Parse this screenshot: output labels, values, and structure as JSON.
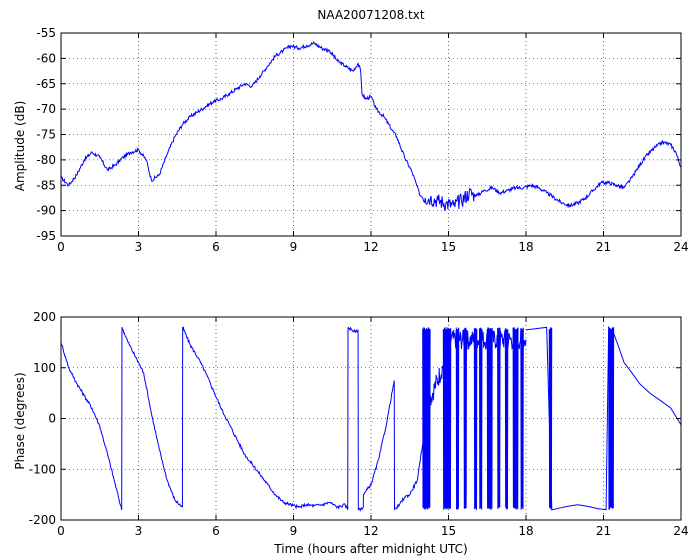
{
  "chart_data": [
    {
      "type": "line",
      "title": "NAA20071208.txt",
      "xlabel": "",
      "ylabel": "Amplitude (dB)",
      "xlim": [
        0,
        24
      ],
      "ylim": [
        -95,
        -55
      ],
      "xticks": [
        0,
        3,
        6,
        9,
        12,
        15,
        18,
        21,
        24
      ],
      "yticks": [
        -95,
        -90,
        -85,
        -80,
        -75,
        -70,
        -65,
        -60,
        -55
      ],
      "grid": true,
      "line_color": "#0000ff",
      "series": [
        {
          "x": [
            0,
            0.3,
            0.6,
            0.9,
            1.2,
            1.5,
            1.8,
            2.1,
            2.4,
            2.7,
            3.0,
            3.3,
            3.5,
            3.8,
            4.1,
            4.4,
            4.7,
            5.0,
            5.3,
            5.6,
            5.9,
            6.2,
            6.5,
            6.8,
            7.1,
            7.4,
            7.7,
            8.0,
            8.3,
            8.6,
            8.9,
            9.2,
            9.5,
            9.8,
            10.1,
            10.4,
            10.7,
            11.0,
            11.3,
            11.5,
            11.6,
            11.65,
            11.8,
            12.0,
            12.2,
            12.5,
            12.8,
            13.0,
            13.3,
            13.6,
            13.9,
            14.1,
            14.3,
            14.6,
            14.9,
            15.2,
            15.5,
            15.8,
            16.1,
            16.4,
            16.7,
            17.0,
            17.3,
            17.6,
            17.9,
            18.2,
            18.5,
            18.8,
            19.1,
            19.4,
            19.7,
            20.0,
            20.3,
            20.6,
            20.9,
            21.2,
            21.5,
            21.8,
            22.1,
            22.4,
            22.7,
            23.0,
            23.3,
            23.6,
            23.8,
            24.0
          ],
          "y": [
            -83.5,
            -85,
            -83,
            -80,
            -78.5,
            -79.5,
            -82,
            -81,
            -79.5,
            -78.5,
            -78,
            -80,
            -84,
            -83,
            -79,
            -75.5,
            -73,
            -71.5,
            -70.5,
            -69.5,
            -68.5,
            -68,
            -67,
            -66,
            -65,
            -65.5,
            -63.5,
            -61.5,
            -59.5,
            -58.5,
            -57.5,
            -58,
            -57.5,
            -57,
            -58,
            -58.5,
            -60.5,
            -61.5,
            -62.5,
            -61,
            -62.5,
            -67,
            -68,
            -67.5,
            -70,
            -71.5,
            -74,
            -75.5,
            -79.5,
            -82.5,
            -87,
            -87.5,
            -87.5,
            -88,
            -88.5,
            -89,
            -88,
            -86.5,
            -87,
            -86,
            -85.5,
            -86.5,
            -86,
            -85.5,
            -85.5,
            -85,
            -85.5,
            -86.5,
            -87.5,
            -88.5,
            -89,
            -88.5,
            -87.5,
            -86,
            -84.5,
            -84.5,
            -85,
            -85.5,
            -83.5,
            -81,
            -79,
            -77.5,
            -76.5,
            -77,
            -78.5,
            -81.5
          ]
        }
      ]
    },
    {
      "type": "line",
      "title": "",
      "xlabel": "Time (hours after midnight UTC)",
      "ylabel": "Phase (degrees)",
      "xlim": [
        0,
        24
      ],
      "ylim": [
        -200,
        200
      ],
      "xticks": [
        0,
        3,
        6,
        9,
        12,
        15,
        18,
        21,
        24
      ],
      "yticks": [
        -200,
        -100,
        0,
        100,
        200
      ],
      "grid": true,
      "line_color": "#0000ff",
      "series": [
        {
          "x": [
            0,
            0.3,
            0.6,
            0.9,
            1.2,
            1.5,
            1.8,
            2.1,
            2.35,
            2.36,
            2.6,
            2.9,
            3.2,
            3.5,
            3.8,
            4.1,
            4.4,
            4.7,
            4.71,
            5.0,
            5.3,
            5.6,
            5.9,
            6.2,
            6.5,
            6.8,
            7.1,
            7.4,
            7.7,
            8.0,
            8.3,
            8.6,
            8.9,
            9.2,
            9.5,
            9.8,
            10.1,
            10.4,
            10.7,
            11.0,
            11.1,
            11.11,
            11.4,
            11.5,
            11.51,
            11.7,
            11.71,
            12.0,
            12.3,
            12.6,
            12.9,
            12.91,
            13.1,
            13.3,
            13.5,
            13.8,
            13.9,
            14.0
          ],
          "y": [
            150,
            100,
            70,
            45,
            20,
            -15,
            -70,
            -130,
            -180,
            180,
            150,
            120,
            90,
            10,
            -60,
            -120,
            -160,
            -175,
            180,
            145,
            120,
            90,
            55,
            20,
            -10,
            -40,
            -70,
            -90,
            -110,
            -130,
            -150,
            -165,
            -170,
            -175,
            -170,
            -172,
            -170,
            -165,
            -175,
            -170,
            -180,
            180,
            170,
            175,
            -180,
            -175,
            -150,
            -130,
            -80,
            -10,
            75,
            -180,
            -170,
            -155,
            -150,
            -120,
            -85,
            -50
          ]
        }
      ],
      "oscillation_spans": [
        [
          14.0,
          14.3
        ],
        [
          14.8,
          15.1
        ],
        [
          15.3,
          15.4
        ],
        [
          15.6,
          15.7
        ],
        [
          16.0,
          16.1
        ],
        [
          16.2,
          16.3
        ],
        [
          16.5,
          16.7
        ],
        [
          16.9,
          17.0
        ],
        [
          17.2,
          17.3
        ],
        [
          17.5,
          17.7
        ],
        [
          17.8,
          17.9
        ],
        [
          18.9,
          19.0
        ],
        [
          21.2,
          21.4
        ]
      ],
      "tail": {
        "x": [
          18.0,
          18.4,
          18.8,
          19.0,
          19.3,
          19.6,
          20.0,
          20.4,
          20.8,
          21.1,
          21.2,
          21.4,
          21.6,
          21.8,
          22.0,
          22.4,
          22.8,
          23.2,
          23.6,
          24.0
        ],
        "y": [
          175,
          178,
          178,
          -180,
          -178,
          -172,
          -170,
          -175,
          -178,
          -180,
          180,
          170,
          140,
          110,
          95,
          70,
          50,
          35,
          20,
          -10
        ]
      }
    }
  ]
}
